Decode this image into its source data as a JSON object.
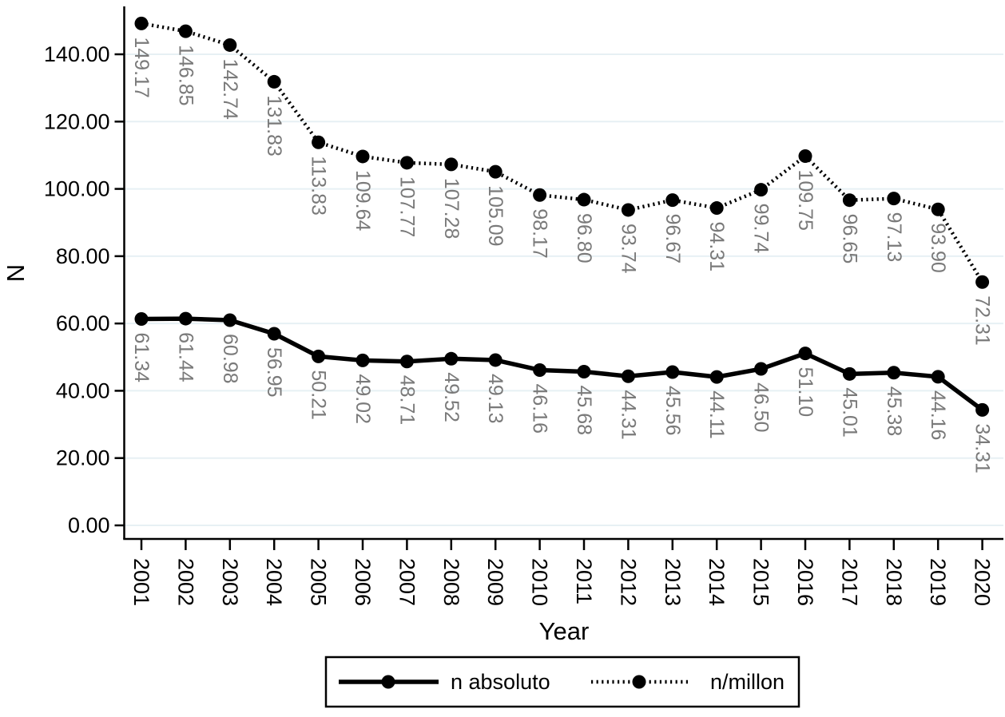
{
  "chart_data": {
    "type": "line",
    "title": "",
    "xlabel": "Year",
    "ylabel": "N",
    "x": [
      2001,
      2002,
      2003,
      2004,
      2005,
      2006,
      2007,
      2008,
      2009,
      2010,
      2011,
      2012,
      2013,
      2014,
      2015,
      2016,
      2017,
      2018,
      2019,
      2020
    ],
    "series": [
      {
        "name": "n absoluto",
        "style": "solid",
        "values": [
          61.34,
          61.44,
          60.98,
          56.95,
          50.21,
          49.02,
          48.71,
          49.52,
          49.13,
          46.16,
          45.68,
          44.31,
          45.56,
          44.11,
          46.5,
          51.1,
          45.01,
          45.38,
          44.16,
          34.31
        ]
      },
      {
        "name": "n/millon",
        "style": "dotted",
        "values": [
          149.17,
          146.85,
          142.74,
          131.83,
          113.83,
          109.64,
          107.77,
          107.28,
          105.09,
          98.17,
          96.8,
          93.74,
          96.67,
          94.31,
          99.74,
          109.75,
          96.65,
          97.13,
          93.9,
          72.31
        ]
      }
    ],
    "yticks": [
      0,
      20,
      40,
      60,
      80,
      100,
      120,
      140
    ],
    "ytick_format": "2dp",
    "ylim": [
      0,
      154
    ],
    "grid": true,
    "legend_position": "bottom",
    "marker": "filled-circle",
    "data_labels_rotated_90deg": true,
    "colors": {
      "line": "#000000",
      "marker": "#000000",
      "axis": "#000000",
      "tick_label": "#000000",
      "data_label": "#7a7a7a",
      "grid": "#e7f0f4",
      "legend_border": "#000000",
      "background": "#ffffff"
    }
  }
}
